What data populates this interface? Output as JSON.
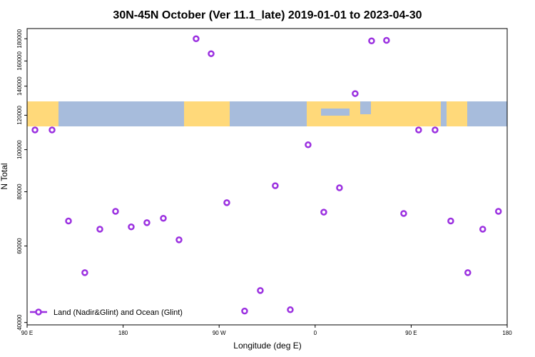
{
  "chart_data": {
    "type": "scatter",
    "title": "30N-45N October (Ver 11.1_late)   2019-01-01 to 2023-04-30",
    "x_label": "Longitude (deg E)",
    "y_label": "N Total",
    "xlim": [
      90,
      540
    ],
    "ylim": [
      39500,
      190000
    ],
    "log_y": true,
    "grid": false,
    "legend": "lower left",
    "xticks": [
      {
        "value": 90,
        "label": "90 E"
      },
      {
        "value": 180,
        "label": "180"
      },
      {
        "value": 270,
        "label": "90 W"
      },
      {
        "value": 360,
        "label": "0"
      },
      {
        "value": 450,
        "label": "90 E"
      },
      {
        "value": 540,
        "label": "180"
      }
    ],
    "yticks": [
      40000,
      60000,
      80000,
      100000,
      120000,
      140000,
      160000,
      180000
    ],
    "series": [
      {
        "name": "Land (Nadir&Glint) and Ocean (Glint)",
        "color": "#9b30e0",
        "x": [
          97.4,
          113.4,
          128.8,
          144.1,
          158.2,
          172.9,
          187.6,
          202.3,
          217.7,
          232.4,
          248.4,
          262.5,
          277.2,
          293.9,
          308.6,
          322.6,
          336.7,
          353.4,
          368.1,
          382.8,
          397.5,
          412.9,
          426.9,
          443.0,
          457.0,
          472.4,
          487.1,
          503.1,
          517.1,
          531.8
        ],
        "values": [
          111000,
          111000,
          68500,
          52100,
          65600,
          72100,
          66400,
          67900,
          69500,
          62000,
          180000,
          166300,
          75500,
          42500,
          47400,
          82600,
          42800,
          102600,
          71800,
          81700,
          134600,
          178000,
          178500,
          71300,
          111000,
          111000,
          68500,
          52100,
          65600,
          72100
        ]
      }
    ]
  }
}
